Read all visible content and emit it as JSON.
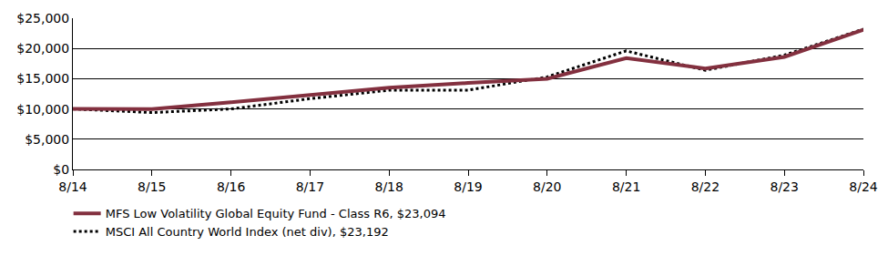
{
  "chart_data": {
    "type": "line",
    "categories": [
      "8/14",
      "8/15",
      "8/16",
      "8/17",
      "8/18",
      "8/19",
      "8/20",
      "8/21",
      "8/22",
      "8/23",
      "8/24"
    ],
    "series": [
      {
        "name": "MFS Low Volatility Global Equity Fund - Class R6, $23,094",
        "color": "#83303f",
        "line_style": "solid",
        "values": [
          10000,
          9980,
          11100,
          12300,
          13500,
          14300,
          15000,
          18400,
          16700,
          18600,
          23094
        ]
      },
      {
        "name": "MSCI All Country World Index (net div), $23,192",
        "color": "#000000",
        "line_style": "dotted",
        "values": [
          10000,
          9400,
          10000,
          11700,
          13100,
          13100,
          15300,
          19600,
          16400,
          18900,
          23192
        ]
      }
    ],
    "ylim": [
      0,
      25000
    ],
    "yticks": [
      {
        "value": 0,
        "label": "$0"
      },
      {
        "value": 5000,
        "label": "$5,000"
      },
      {
        "value": 10000,
        "label": "$10,000"
      },
      {
        "value": 15000,
        "label": "$15,000"
      },
      {
        "value": 20000,
        "label": "$20,000"
      },
      {
        "value": 25000,
        "label": "$25,000"
      }
    ],
    "grid": true,
    "legend": "bottom-left"
  }
}
